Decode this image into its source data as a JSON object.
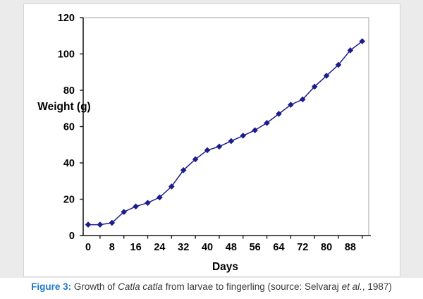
{
  "chart_data": {
    "type": "line",
    "title": "",
    "xlabel": "Days",
    "ylabel": "Weight (g)",
    "x": [
      0,
      4,
      8,
      12,
      16,
      20,
      24,
      28,
      32,
      36,
      40,
      44,
      48,
      52,
      56,
      60,
      64,
      68,
      72,
      76,
      80,
      84,
      88,
      92
    ],
    "y": [
      6,
      6,
      7,
      13,
      16,
      18,
      21,
      27,
      36,
      42,
      47,
      49,
      52,
      55,
      58,
      62,
      67,
      72,
      75,
      82,
      88,
      94,
      102,
      107
    ],
    "series_name": "Weight (g)",
    "xlim": [
      0,
      92
    ],
    "ylim": [
      0,
      120
    ],
    "x_tick_interval": 4,
    "x_label_interval": 8,
    "y_tick_interval": 20,
    "x_tick_labels": [
      "0",
      "8",
      "16",
      "24",
      "32",
      "40",
      "48",
      "56",
      "64",
      "72",
      "80",
      "88"
    ],
    "y_tick_labels": [
      "0",
      "20",
      "40",
      "60",
      "80",
      "100",
      "120"
    ],
    "grid": false,
    "legend": "none",
    "marker": "diamond",
    "line_color": "#1c1c8f",
    "axis_color": "#1a1a1a",
    "plot_border_color": "#a0a0a0"
  },
  "caption": {
    "label": "Figure 3:",
    "text_1": " Growth of ",
    "species": "Catla catla",
    "text_2": " from larvae to fingerling (source: Selvaraj ",
    "etal": "et al.",
    "text_3": ", 1987)",
    "label_color": "#1b79d0"
  }
}
